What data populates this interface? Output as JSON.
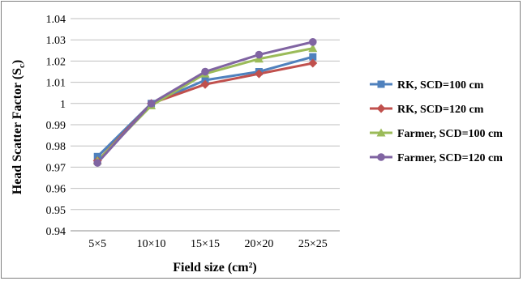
{
  "chart_data": {
    "type": "line",
    "categories": [
      "5×5",
      "10×10",
      "15×15",
      "20×20",
      "25×25"
    ],
    "xlabel": "Field size (cm²)",
    "ylabel_main": "Head Scatter Factor (S",
    "ylabel_sub": "c",
    "ylabel_close": ")",
    "ylim": [
      0.94,
      1.04
    ],
    "ytick_step": 0.01,
    "yticks": [
      "0.94",
      "0.95",
      "0.96",
      "0.97",
      "0.98",
      "0.99",
      "1",
      "1.01",
      "1.02",
      "1.03",
      "1.04"
    ],
    "grid": true,
    "legend_position": "right",
    "series": [
      {
        "name": "RK, SCD=100 cm",
        "marker": "square",
        "color": "#4f81bd",
        "values": [
          0.975,
          1.0,
          1.011,
          1.015,
          1.022
        ]
      },
      {
        "name": "RK, SCD=120 cm",
        "marker": "diamond",
        "color": "#c0504d",
        "values": [
          0.973,
          1.0,
          1.009,
          1.014,
          1.019
        ]
      },
      {
        "name": "Farmer, SCD=100 cm",
        "marker": "triangle",
        "color": "#9bbb59",
        "values": [
          0.973,
          0.999,
          1.014,
          1.021,
          1.026
        ]
      },
      {
        "name": "Farmer, SCD=120 cm",
        "marker": "circle",
        "color": "#8064a2",
        "values": [
          0.972,
          1.0,
          1.015,
          1.023,
          1.029
        ]
      }
    ]
  }
}
